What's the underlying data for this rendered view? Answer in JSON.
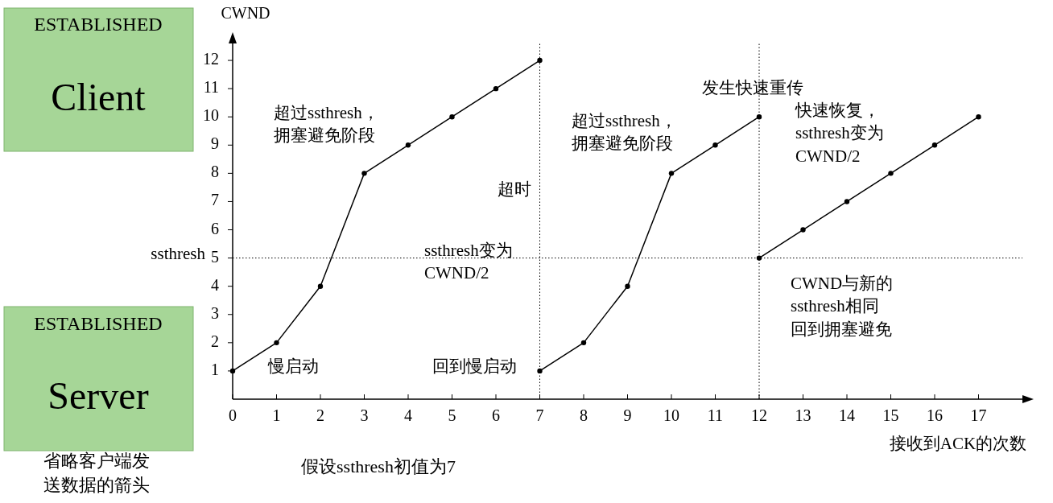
{
  "chart_data": {
    "type": "line",
    "xlabel": "接收到ACK的次数",
    "ylabel": "CWND",
    "xlim": [
      0,
      18
    ],
    "ylim": [
      0,
      12.6
    ],
    "xticks": [
      0,
      1,
      2,
      3,
      4,
      5,
      6,
      7,
      8,
      9,
      10,
      11,
      12,
      13,
      14,
      15,
      16,
      17
    ],
    "yticks": [
      1,
      2,
      3,
      4,
      5,
      6,
      7,
      8,
      9,
      10,
      11,
      12
    ],
    "grid": false,
    "marker": "circle",
    "line_style": "solid",
    "series": [
      {
        "color": "#000000",
        "x": [
          0,
          1,
          2,
          3,
          4,
          5,
          6,
          7
        ],
        "values": [
          1,
          2,
          4,
          8,
          9,
          10,
          11,
          12
        ]
      },
      {
        "color": "#000000",
        "x": [
          7,
          8,
          9,
          10,
          11,
          12
        ],
        "values": [
          1,
          2,
          4,
          8,
          9,
          10
        ]
      },
      {
        "color": "#000000",
        "x": [
          12,
          13,
          14,
          15,
          16,
          17
        ],
        "values": [
          5,
          6,
          7,
          8,
          9,
          10
        ]
      }
    ],
    "ref_lines": [
      {
        "axis": "y",
        "value": 5,
        "label": "ssthresh",
        "line_style": "dotted",
        "color": "#000000"
      },
      {
        "axis": "x",
        "value": 7,
        "line_style": "dotted",
        "color": "#000000"
      },
      {
        "axis": "x",
        "value": 12,
        "line_style": "dotted",
        "color": "#000000"
      }
    ],
    "annotations": [
      "超过ssthresh，拥塞避免阶段",
      "超时",
      "ssthresh变为CWND/2",
      "慢启动",
      "回到慢启动",
      "超过ssthresh，拥塞避免阶段",
      "发生快速重传",
      "快速恢复，ssthresh变为CWND/2",
      "CWND与新的ssthresh相同回到拥塞避免",
      "ESTABLISHED",
      "Client",
      "ESTABLISHED",
      "Server",
      "省略客户端发送数据的箭头",
      "假设ssthresh初值为7"
    ]
  }
}
